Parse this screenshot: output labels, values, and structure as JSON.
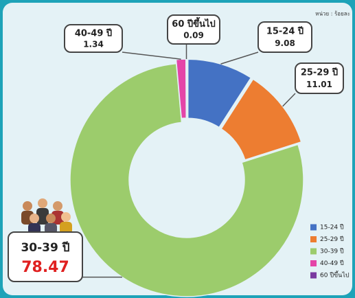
{
  "chart_data": {
    "type": "donut",
    "unit_label": "หน่วย : ร้อยละ",
    "categories": [
      "15-24 ปี",
      "25-29 ปี",
      "30-39 ปี",
      "40-49 ปี",
      "60 ปีขึ้นไป"
    ],
    "values": [
      9.08,
      11.01,
      78.47,
      1.34,
      0.09
    ],
    "colors": [
      "#4472c4",
      "#ed7d31",
      "#9ccc6c",
      "#e445a8",
      "#7a3aa0"
    ]
  }
}
